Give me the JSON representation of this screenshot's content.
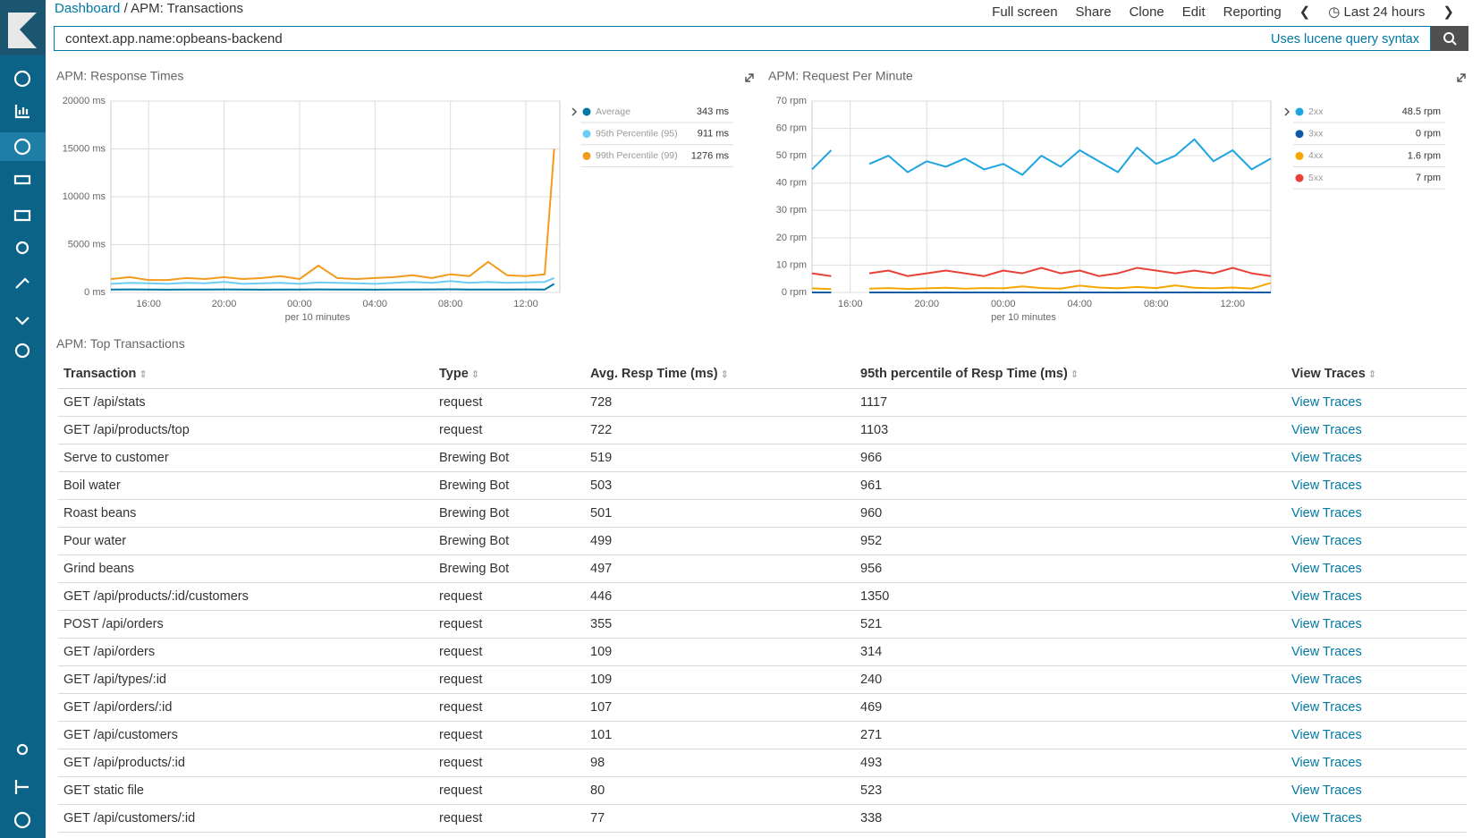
{
  "header": {
    "breadcrumbs": [
      "Dashboard",
      "APM: Transactions"
    ],
    "menu": [
      "Full screen",
      "Share",
      "Clone",
      "Edit",
      "Reporting"
    ],
    "time_range": "Last 24 hours"
  },
  "query": {
    "text": "context.app.name:opbeans-backend",
    "hint": "Uses lucene query syntax"
  },
  "chart_data": [
    {
      "type": "line",
      "title": "APM: Response Times",
      "x_label": "per 10 minutes",
      "x": [
        14,
        15,
        16,
        17,
        18,
        19,
        20,
        21,
        22,
        23,
        24,
        25,
        26,
        27,
        28,
        29,
        30,
        31,
        32,
        33,
        34,
        35,
        36,
        37,
        37.5
      ],
      "xlim": [
        14,
        37.8
      ],
      "xticks": [
        {
          "value": 16,
          "label": "16:00"
        },
        {
          "value": 20,
          "label": "20:00"
        },
        {
          "value": 24,
          "label": "00:00"
        },
        {
          "value": 28,
          "label": "04:00"
        },
        {
          "value": 32,
          "label": "08:00"
        },
        {
          "value": 36,
          "label": "12:00"
        }
      ],
      "ylim": [
        0,
        20000
      ],
      "yticks": [
        {
          "value": 0,
          "label": "0 ms"
        },
        {
          "value": 5000,
          "label": "5000 ms"
        },
        {
          "value": 10000,
          "label": "10000 ms"
        },
        {
          "value": 15000,
          "label": "15000 ms"
        },
        {
          "value": 20000,
          "label": "20000 ms"
        }
      ],
      "grid": true,
      "series": [
        {
          "name": "Average",
          "legend_value": "343 ms",
          "color": "#0079a5",
          "values": [
            300,
            320,
            310,
            290,
            300,
            310,
            320,
            300,
            290,
            310,
            300,
            320,
            310,
            300,
            290,
            310,
            300,
            320,
            330,
            300,
            310,
            300,
            320,
            310,
            900
          ]
        },
        {
          "name": "95th Percentile (95)",
          "legend_value": "911 ms",
          "color": "#6dccf1",
          "values": [
            900,
            1000,
            950,
            900,
            1000,
            950,
            1100,
            900,
            950,
            1000,
            900,
            1050,
            1000,
            950,
            900,
            1000,
            1100,
            1000,
            1200,
            1000,
            1100,
            1000,
            1050,
            1100,
            1500
          ]
        },
        {
          "name": "99th Percentile (99)",
          "legend_value": "1276 ms",
          "color": "#f29b1d",
          "values": [
            1400,
            1600,
            1300,
            1300,
            1500,
            1400,
            1600,
            1400,
            1500,
            1700,
            1400,
            2800,
            1500,
            1400,
            1500,
            1600,
            1800,
            1500,
            1900,
            1700,
            3200,
            1800,
            1700,
            1900,
            15000
          ]
        }
      ]
    },
    {
      "type": "line",
      "title": "APM: Request Per Minute",
      "x_label": "per 10 minutes",
      "x": [
        14,
        15,
        16,
        17,
        18,
        19,
        20,
        21,
        22,
        23,
        24,
        25,
        26,
        27,
        28,
        29,
        30,
        31,
        32,
        33,
        34,
        35,
        36,
        37,
        38
      ],
      "xlim": [
        14,
        38
      ],
      "xticks": [
        {
          "value": 16,
          "label": "16:00"
        },
        {
          "value": 20,
          "label": "20:00"
        },
        {
          "value": 24,
          "label": "00:00"
        },
        {
          "value": 28,
          "label": "04:00"
        },
        {
          "value": 32,
          "label": "08:00"
        },
        {
          "value": 36,
          "label": "12:00"
        }
      ],
      "ylim": [
        0,
        70
      ],
      "yticks": [
        {
          "value": 0,
          "label": "0 rpm"
        },
        {
          "value": 10,
          "label": "10 rpm"
        },
        {
          "value": 20,
          "label": "20 rpm"
        },
        {
          "value": 30,
          "label": "30 rpm"
        },
        {
          "value": 40,
          "label": "40 rpm"
        },
        {
          "value": 50,
          "label": "50 rpm"
        },
        {
          "value": 60,
          "label": "60 rpm"
        },
        {
          "value": 70,
          "label": "70 rpm"
        }
      ],
      "grid": true,
      "series": [
        {
          "name": "2xx",
          "legend_value": "48.5 rpm",
          "color": "#1ea5e0",
          "values": [
            45,
            52,
            null,
            47,
            50,
            44,
            48,
            46,
            49,
            45,
            47,
            43,
            50,
            46,
            52,
            48,
            44,
            53,
            47,
            50,
            56,
            48,
            52,
            45,
            49
          ]
        },
        {
          "name": "3xx",
          "legend_value": "0 rpm",
          "color": "#0f5aa5",
          "values": [
            0,
            0,
            null,
            0,
            0,
            0,
            0,
            0,
            0,
            0,
            0,
            0,
            0,
            0,
            0,
            0,
            0,
            0,
            0,
            0,
            0,
            0,
            0,
            0,
            0
          ]
        },
        {
          "name": "4xx",
          "legend_value": "1.6 rpm",
          "color": "#f5a700",
          "values": [
            1.5,
            1.2,
            null,
            1.4,
            1.6,
            1.3,
            1.5,
            1.7,
            1.4,
            1.6,
            1.5,
            2.2,
            1.6,
            1.4,
            2.5,
            1.8,
            1.5,
            2,
            1.6,
            2.6,
            1.7,
            1.5,
            1.8,
            1.4,
            3.5
          ]
        },
        {
          "name": "5xx",
          "legend_value": "7 rpm",
          "color": "#e7423a",
          "values": [
            7,
            6,
            null,
            7,
            8,
            6,
            7,
            8,
            7,
            6,
            8,
            7,
            9,
            7,
            8,
            6,
            7,
            9,
            8,
            7,
            8,
            7,
            9,
            7,
            6
          ]
        }
      ]
    }
  ],
  "table": {
    "title": "APM: Top Transactions",
    "columns": [
      "Transaction",
      "Type",
      "Avg. Resp Time (ms)",
      "95th percentile of Resp Time (ms)",
      "View Traces"
    ],
    "rows": [
      [
        "GET /api/stats",
        "request",
        "728",
        "1117",
        "View Traces"
      ],
      [
        "GET /api/products/top",
        "request",
        "722",
        "1103",
        "View Traces"
      ],
      [
        "Serve to customer",
        "Brewing Bot",
        "519",
        "966",
        "View Traces"
      ],
      [
        "Boil water",
        "Brewing Bot",
        "503",
        "961",
        "View Traces"
      ],
      [
        "Roast beans",
        "Brewing Bot",
        "501",
        "960",
        "View Traces"
      ],
      [
        "Pour water",
        "Brewing Bot",
        "499",
        "952",
        "View Traces"
      ],
      [
        "Grind beans",
        "Brewing Bot",
        "497",
        "956",
        "View Traces"
      ],
      [
        "GET /api/products/:id/customers",
        "request",
        "446",
        "1350",
        "View Traces"
      ],
      [
        "POST /api/orders",
        "request",
        "355",
        "521",
        "View Traces"
      ],
      [
        "GET /api/orders",
        "request",
        "109",
        "314",
        "View Traces"
      ],
      [
        "GET /api/types/:id",
        "request",
        "109",
        "240",
        "View Traces"
      ],
      [
        "GET /api/orders/:id",
        "request",
        "107",
        "469",
        "View Traces"
      ],
      [
        "GET /api/customers",
        "request",
        "101",
        "271",
        "View Traces"
      ],
      [
        "GET /api/products/:id",
        "request",
        "98",
        "493",
        "View Traces"
      ],
      [
        "GET static file",
        "request",
        "80",
        "523",
        "View Traces"
      ],
      [
        "GET /api/customers/:id",
        "request",
        "77",
        "338",
        "View Traces"
      ]
    ]
  }
}
